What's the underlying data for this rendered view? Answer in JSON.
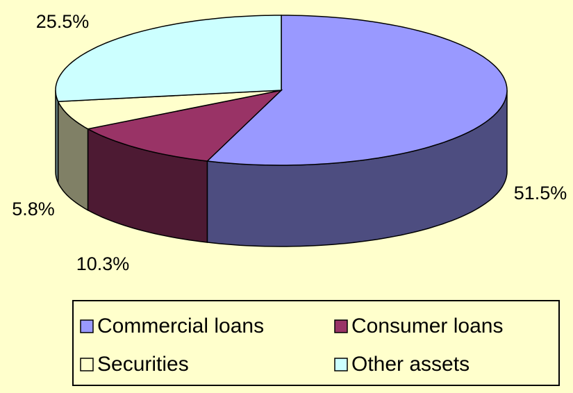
{
  "chart_data": {
    "type": "pie3d",
    "categories": [
      "Commercial loans",
      "Consumer loans",
      "Securities",
      "Other assets"
    ],
    "values": [
      51.5,
      10.3,
      5.8,
      25.5
    ],
    "value_labels": [
      "51.5%",
      "10.3%",
      "5.8%",
      "25.5%"
    ],
    "colors": [
      "#9999ff",
      "#993366",
      "#ffffcc",
      "#ccffff"
    ],
    "legend": "bottom"
  }
}
